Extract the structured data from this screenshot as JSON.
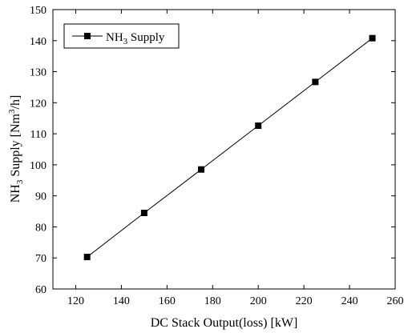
{
  "chart_data": {
    "type": "line",
    "xlabel": "DC Stack Output(loss) [kW]",
    "ylabel": {
      "prefix": "NH",
      "sub": "3",
      "middle": " Supply [Nm",
      "sup": "3",
      "suffix": "/h]"
    },
    "xlim": [
      110,
      260
    ],
    "ylim": [
      60,
      150
    ],
    "xticks": [
      120,
      140,
      160,
      180,
      200,
      220,
      240,
      260
    ],
    "yticks": [
      60,
      70,
      80,
      90,
      100,
      110,
      120,
      130,
      140,
      150
    ],
    "grid": false,
    "legend_position": "top-left",
    "series": [
      {
        "name": {
          "prefix": "NH",
          "sub": "3",
          "suffix": " Supply"
        },
        "marker": "square",
        "color": "#000000",
        "x": [
          125,
          150,
          175,
          200,
          225,
          250
        ],
        "y": [
          70.3,
          84.5,
          98.5,
          112.6,
          126.7,
          140.8
        ]
      }
    ]
  }
}
